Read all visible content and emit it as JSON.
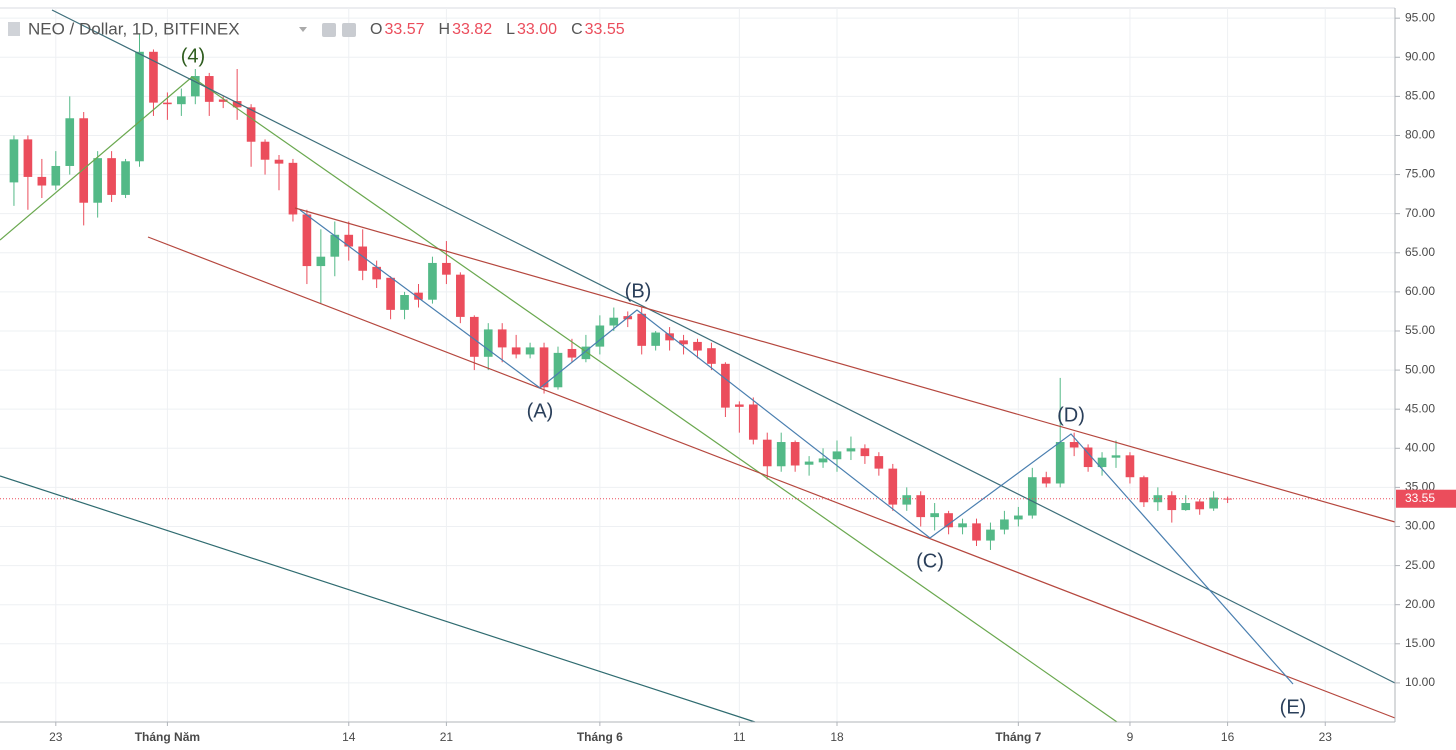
{
  "chart_data": {
    "type": "candlestick",
    "title": "NEO / Dollar, 1D, BITFINEX",
    "legend": [
      {
        "label": "O",
        "value": "33.57"
      },
      {
        "label": "H",
        "value": "33.82"
      },
      {
        "label": "L",
        "value": "33.00"
      },
      {
        "label": "C",
        "value": "33.55"
      }
    ],
    "x": [
      "04-20",
      "04-21",
      "04-22",
      "04-23",
      "04-24",
      "04-25",
      "04-26",
      "04-27",
      "04-28",
      "04-29",
      "04-30",
      "05-01",
      "05-02",
      "05-03",
      "05-04",
      "05-05",
      "05-06",
      "05-07",
      "05-08",
      "05-09",
      "05-10",
      "05-11",
      "05-12",
      "05-13",
      "05-14",
      "05-15",
      "05-16",
      "05-17",
      "05-18",
      "05-19",
      "05-20",
      "05-21",
      "05-22",
      "05-23",
      "05-24",
      "05-25",
      "05-26",
      "05-27",
      "05-28",
      "05-29",
      "05-30",
      "05-31",
      "06-01",
      "06-02",
      "06-03",
      "06-04",
      "06-05",
      "06-06",
      "06-07",
      "06-08",
      "06-09",
      "06-10",
      "06-11",
      "06-12",
      "06-13",
      "06-14",
      "06-15",
      "06-16",
      "06-17",
      "06-18",
      "06-19",
      "06-20",
      "06-21",
      "06-22",
      "06-23",
      "06-24",
      "06-25",
      "06-26",
      "06-27",
      "06-28",
      "06-29",
      "06-30",
      "07-01",
      "07-02",
      "07-03",
      "07-04",
      "07-05",
      "07-06",
      "07-07",
      "07-08",
      "07-09",
      "07-10",
      "07-11",
      "07-12",
      "07-13",
      "07-14",
      "07-15",
      "07-16"
    ],
    "open": [
      74,
      79.5,
      74.7,
      73.6,
      76.1,
      82.2,
      71.4,
      77.1,
      72.4,
      76.7,
      90.7,
      84.2,
      84,
      85,
      87.6,
      84.6,
      84.4,
      83.6,
      79.2,
      76.9,
      76.5,
      69.9,
      63.3,
      64.5,
      67.3,
      65.8,
      63.2,
      61.8,
      57.7,
      59.9,
      59,
      63.7,
      62.2,
      56.8,
      51.7,
      55.2,
      52.9,
      52,
      52.9,
      47.8,
      52.7,
      51.4,
      53,
      55.7,
      56.9,
      57.2,
      53.1,
      54.7,
      53.8,
      53.6,
      52.8,
      50.8,
      45.6,
      45.6,
      41.1,
      37.7,
      40.8,
      37.9,
      38.2,
      38.6,
      39.6,
      40,
      39,
      37.4,
      32.8,
      34,
      31.2,
      31.7,
      29.9,
      30.4,
      28.2,
      29.6,
      30.9,
      31.4,
      36.3,
      35.5,
      40.8,
      40.1,
      37.6,
      38.8,
      39.1,
      36.3,
      33.1,
      34,
      32.1,
      33.2,
      32.3,
      33.57
    ],
    "high": [
      80,
      80,
      77,
      78,
      85,
      83,
      78,
      78,
      77,
      93,
      91,
      85.5,
      86,
      88.5,
      88,
      85,
      88.5,
      84,
      79.5,
      77.5,
      77,
      70.5,
      68,
      69,
      69,
      68,
      64,
      62,
      60,
      61,
      64.5,
      66.5,
      62.5,
      57,
      56,
      56,
      54.5,
      53.5,
      53.5,
      53,
      54,
      54.5,
      57,
      58,
      57.5,
      58,
      55,
      55.5,
      54.5,
      54,
      53.5,
      51,
      46,
      46.5,
      42,
      42,
      41,
      39,
      40,
      41,
      41.5,
      40.5,
      39.5,
      38,
      35,
      34.5,
      33,
      32,
      31,
      31,
      30.5,
      32,
      32.5,
      37.5,
      37,
      49,
      42,
      40.5,
      39.5,
      41,
      39.5,
      36.5,
      35,
      34.5,
      34,
      33.5,
      34.5,
      33.82
    ],
    "low": [
      71,
      70.5,
      72,
      73,
      75,
      68.5,
      69.5,
      71.5,
      72,
      76,
      82.5,
      82,
      82.5,
      84,
      82.5,
      83.5,
      82,
      76,
      75,
      73,
      69,
      61,
      58.5,
      62,
      64,
      61.5,
      60.5,
      56.5,
      56.5,
      58,
      58.5,
      61,
      56,
      50,
      50,
      51,
      51.5,
      51.5,
      47,
      47.5,
      51,
      51,
      52,
      55,
      55.5,
      52,
      52.5,
      52.5,
      52,
      51.5,
      50,
      44,
      42,
      40.5,
      36,
      37,
      37,
      36.5,
      37.5,
      37,
      38.5,
      38,
      36.5,
      32,
      32,
      30,
      29.5,
      29,
      29,
      27.5,
      27,
      29,
      30,
      31,
      35,
      35,
      39,
      37,
      36.5,
      37.5,
      35.5,
      32.5,
      32,
      30.5,
      32,
      31.5,
      32,
      33
    ],
    "close": [
      79.5,
      74.7,
      73.6,
      76.1,
      82.2,
      71.4,
      77.1,
      72.4,
      76.7,
      90.7,
      84.2,
      84,
      85,
      87.6,
      84.3,
      84.3,
      83.6,
      79.2,
      76.9,
      76.4,
      69.9,
      63.3,
      64.5,
      67.3,
      65.8,
      62.7,
      61.6,
      57.7,
      59.6,
      59,
      63.7,
      62.2,
      56.8,
      51.7,
      55.2,
      52.9,
      52,
      52.9,
      47.8,
      52.2,
      51.6,
      53,
      55.7,
      56.7,
      56.5,
      53.1,
      54.8,
      53.8,
      53.3,
      52.5,
      50.8,
      45.2,
      45.3,
      41.1,
      37.7,
      40.8,
      37.8,
      38.3,
      38.7,
      39.6,
      40,
      39,
      37.4,
      32.8,
      34,
      31.2,
      31.7,
      29.9,
      30.4,
      28.2,
      29.6,
      30.9,
      31.4,
      36.3,
      35.5,
      40.8,
      40.1,
      37.6,
      38.8,
      39.1,
      36.3,
      33.1,
      34,
      32.1,
      33,
      32.2,
      33.7,
      33.55
    ],
    "up_color": "#53b987",
    "down_color": "#eb4d5c",
    "xlim": [
      "04-19",
      "07-28"
    ],
    "xticks": [
      {
        "value": "04-23",
        "label": "23"
      },
      {
        "value": "05-01",
        "label": "Tháng Năm"
      },
      {
        "value": "05-14",
        "label": "14"
      },
      {
        "value": "05-21",
        "label": "21"
      },
      {
        "value": "06-01",
        "label": "Tháng 6"
      },
      {
        "value": "06-11",
        "label": "11"
      },
      {
        "value": "06-18",
        "label": "18"
      },
      {
        "value": "07-01",
        "label": "Tháng 7"
      },
      {
        "value": "07-09",
        "label": "9"
      },
      {
        "value": "07-16",
        "label": "16"
      },
      {
        "value": "07-23",
        "label": "23"
      }
    ],
    "ylim": [
      5,
      96.3
    ],
    "yticks": [
      {
        "value": 95,
        "label": "95.00"
      },
      {
        "value": 90,
        "label": "90.00"
      },
      {
        "value": 85,
        "label": "85.00"
      },
      {
        "value": 80,
        "label": "80.00"
      },
      {
        "value": 75,
        "label": "75.00"
      },
      {
        "value": 70,
        "label": "70.00"
      },
      {
        "value": 65,
        "label": "65.00"
      },
      {
        "value": 60,
        "label": "60.00"
      },
      {
        "value": 55,
        "label": "55.00"
      },
      {
        "value": 50,
        "label": "50.00"
      },
      {
        "value": 45,
        "label": "45.00"
      },
      {
        "value": 40,
        "label": "40.00"
      },
      {
        "value": 35,
        "label": "35.00"
      },
      {
        "value": 30,
        "label": "30.00"
      },
      {
        "value": 25,
        "label": "25.00"
      },
      {
        "value": 20,
        "label": "20.00"
      },
      {
        "value": 15,
        "label": "15.00"
      },
      {
        "value": 10,
        "label": "10.00"
      }
    ],
    "last_price": {
      "value": 33.55,
      "label": "33.55"
    },
    "grid": true,
    "annotations": [
      "(4)",
      "(A)",
      "(B)",
      "(C)",
      "(D)",
      "(E)"
    ]
  }
}
